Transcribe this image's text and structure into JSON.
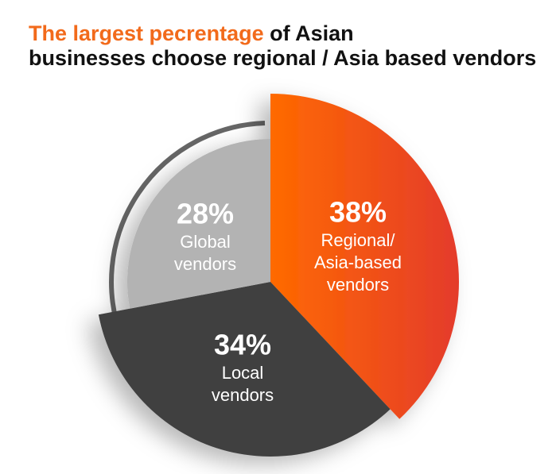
{
  "chart_data": {
    "type": "pie",
    "title": [
      "The largest pecrentage",
      "of Asian",
      "businesses choose regional / Asia based vendors"
    ],
    "categories": [
      [
        "Regional/",
        "Asia-based",
        "vendors"
      ],
      [
        "Local",
        "vendors"
      ],
      [
        "Global",
        "vendors"
      ]
    ],
    "values": [
      38,
      34,
      28
    ],
    "value_labels": [
      "38%",
      "34%",
      "28%"
    ],
    "colors": [
      "url(#orangeGrad)",
      "#404040",
      "#b3b3b3"
    ]
  }
}
